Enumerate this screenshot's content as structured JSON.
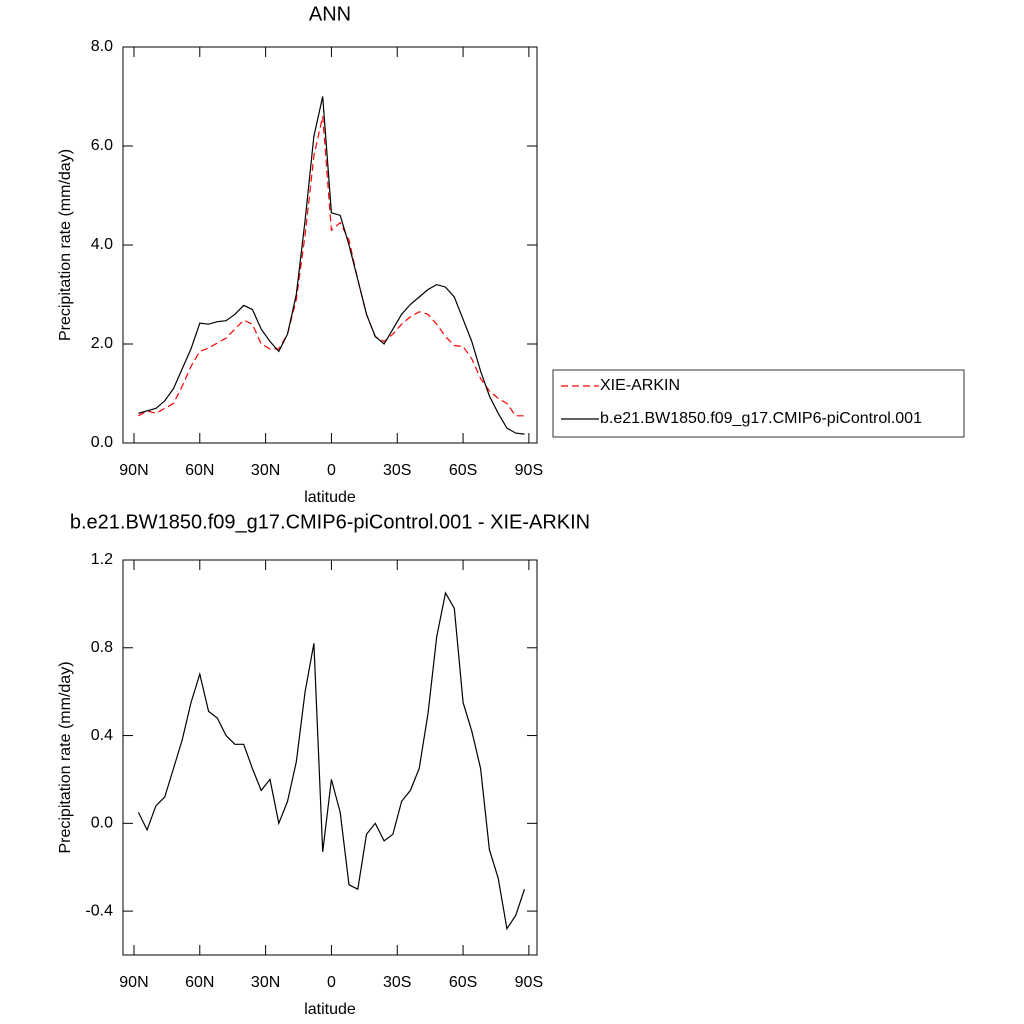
{
  "chart_data": [
    {
      "type": "line",
      "title": "ANN",
      "x_label": "latitude",
      "y_label": "Precipitation rate (mm/day)",
      "x": [
        88,
        84,
        80,
        76,
        72,
        68,
        64,
        60,
        56,
        52,
        48,
        44,
        40,
        36,
        32,
        28,
        24,
        20,
        16,
        12,
        8,
        4,
        0,
        -4,
        -8,
        -12,
        -16,
        -20,
        -24,
        -28,
        -32,
        -36,
        -40,
        -44,
        -48,
        -52,
        -56,
        -60,
        -64,
        -68,
        -72,
        -76,
        -80,
        -84,
        -88
      ],
      "xlim": [
        95,
        -93.7
      ],
      "xticks": [
        {
          "value": 90,
          "label": "90N"
        },
        {
          "value": 60,
          "label": "60N"
        },
        {
          "value": 30,
          "label": "30N"
        },
        0,
        {
          "value": -30,
          "label": "30S"
        },
        {
          "value": -60,
          "label": "60S"
        },
        {
          "value": -90,
          "label": "90S"
        }
      ],
      "ylim": [
        0,
        8
      ],
      "yticks": [
        {
          "value": 0,
          "label": "0.0"
        },
        {
          "value": 2,
          "label": "2.0"
        },
        {
          "value": 4,
          "label": "4.0"
        },
        {
          "value": 6,
          "label": "6.0"
        },
        {
          "value": 8,
          "label": "8.0"
        }
      ],
      "legend": "right",
      "series": [
        {
          "name": "XIE-ARKIN",
          "color": "#ff0000",
          "dashed": true,
          "values": [
            0.55,
            0.65,
            0.6,
            0.7,
            0.8,
            1.15,
            1.55,
            1.85,
            1.92,
            2.02,
            2.12,
            2.3,
            2.48,
            2.4,
            2.0,
            1.9,
            1.9,
            2.2,
            2.9,
            4.2,
            5.8,
            6.6,
            4.3,
            4.45,
            4.1,
            3.3,
            2.6,
            2.15,
            2.05,
            2.2,
            2.4,
            2.55,
            2.65,
            2.6,
            2.4,
            2.15,
            1.97,
            1.95,
            1.7,
            1.3,
            1.05,
            0.9,
            0.8,
            0.55,
            0.55
          ]
        },
        {
          "name": "b.e21.BW1850.f09_g17.CMIP6-piControl.001",
          "color": "#000000",
          "dashed": false,
          "values": [
            0.6,
            0.65,
            0.7,
            0.85,
            1.1,
            1.5,
            1.9,
            2.42,
            2.4,
            2.45,
            2.47,
            2.6,
            2.78,
            2.7,
            2.3,
            2.05,
            1.85,
            2.2,
            3.0,
            4.5,
            6.2,
            7.0,
            4.65,
            4.6,
            4.0,
            3.3,
            2.6,
            2.15,
            2.0,
            2.3,
            2.6,
            2.8,
            2.95,
            3.1,
            3.2,
            3.15,
            2.95,
            2.5,
            2.05,
            1.45,
            0.95,
            0.6,
            0.3,
            0.2,
            0.18
          ]
        }
      ]
    },
    {
      "type": "line",
      "title": "b.e21.BW1850.f09_g17.CMIP6-piControl.001 - XIE-ARKIN",
      "x_label": "latitude",
      "y_label": "Precipitation rate (mm/day)",
      "x": [
        88,
        84,
        80,
        76,
        72,
        68,
        64,
        60,
        56,
        52,
        48,
        44,
        40,
        36,
        32,
        28,
        24,
        20,
        16,
        12,
        8,
        4,
        0,
        -4,
        -8,
        -12,
        -16,
        -20,
        -24,
        -28,
        -32,
        -36,
        -40,
        -44,
        -48,
        -52,
        -56,
        -60,
        -64,
        -68,
        -72,
        -76,
        -80,
        -84,
        -88
      ],
      "xlim": [
        95,
        -93.7
      ],
      "xticks": [
        {
          "value": 90,
          "label": "90N"
        },
        {
          "value": 60,
          "label": "60N"
        },
        {
          "value": 30,
          "label": "30N"
        },
        0,
        {
          "value": -30,
          "label": "30S"
        },
        {
          "value": -60,
          "label": "60S"
        },
        {
          "value": -90,
          "label": "90S"
        }
      ],
      "ylim": [
        -0.6,
        1.2
      ],
      "yticks": [
        {
          "value": -0.4,
          "label": "-0.4"
        },
        {
          "value": 0,
          "label": "0.0"
        },
        {
          "value": 0.4,
          "label": "0.4"
        },
        {
          "value": 0.8,
          "label": "0.8"
        },
        {
          "value": 1.2,
          "label": "1.2"
        }
      ],
      "series": [
        {
          "color": "#000000",
          "dashed": false,
          "values": [
            0.05,
            -0.03,
            0.08,
            0.12,
            0.25,
            0.38,
            0.55,
            0.68,
            0.51,
            0.48,
            0.4,
            0.36,
            0.36,
            0.25,
            0.15,
            0.2,
            0.0,
            0.1,
            0.28,
            0.6,
            0.82,
            -0.13,
            0.2,
            0.05,
            -0.28,
            -0.3,
            -0.05,
            0.0,
            -0.08,
            -0.05,
            0.1,
            0.15,
            0.25,
            0.5,
            0.85,
            1.05,
            0.98,
            0.55,
            0.42,
            0.25,
            -0.12,
            -0.25,
            -0.48,
            -0.42,
            -0.3
          ]
        }
      ]
    }
  ]
}
